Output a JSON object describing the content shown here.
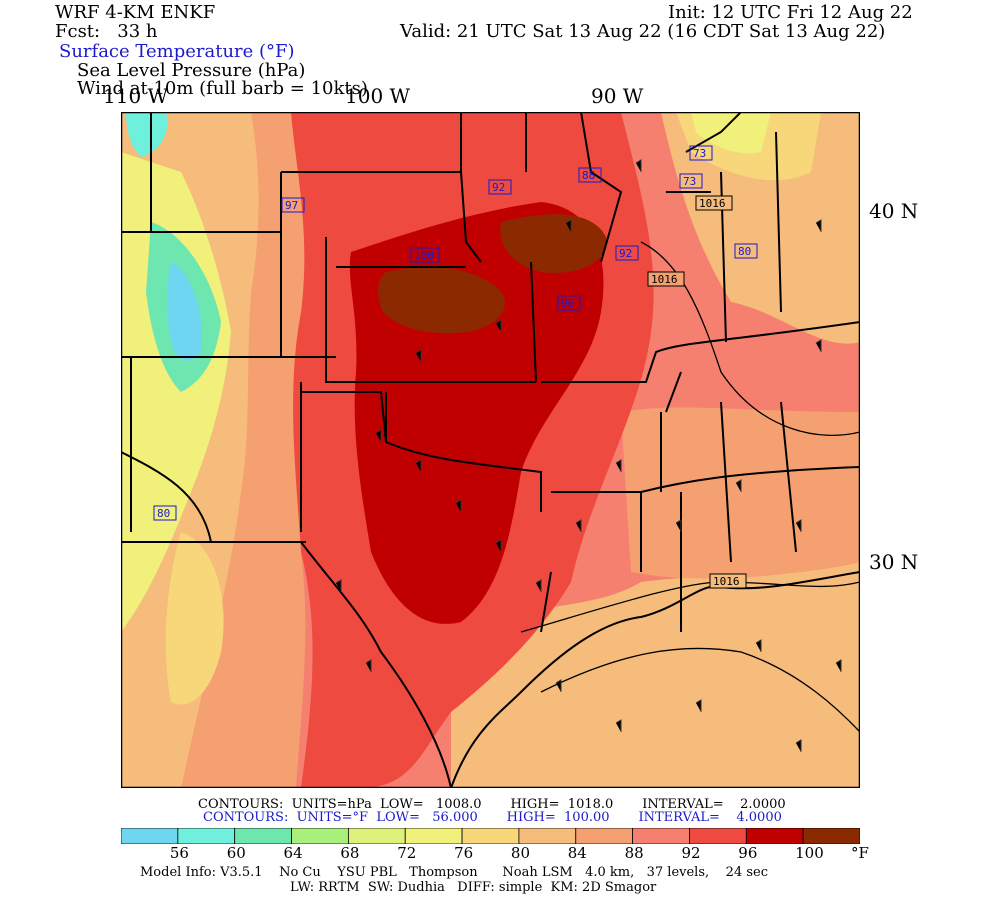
{
  "header": {
    "model": "WRF 4-KM ENKF",
    "init": "Init: 12 UTC Fri 12 Aug 22",
    "fcst": "Fcst:   33 h",
    "valid": "Valid: 21 UTC Sat 13 Aug 22 (16 CDT Sat 13 Aug 22)",
    "field1": "Surface Temperature (°F)",
    "field2": "Sea Level Pressure (hPa)",
    "field3": "Wind at 10m (full barb = 10kts)"
  },
  "axis_labels": {
    "lon": [
      "110 W",
      "100 W",
      "90 W"
    ],
    "lat": [
      "40 N",
      "30 N"
    ]
  },
  "contour_info": {
    "pressure": "CONTOURS:  UNITS=hPa  LOW=   1008.0       HIGH=  1018.0       INTERVAL=    2.0000",
    "temperature": "CONTOURS:  UNITS=°F  LOW=   56.000       HIGH=  100.00       INTERVAL=    4.0000"
  },
  "colorbar": {
    "colors": [
      "#6ed6f0",
      "#6ef0dc",
      "#6ee6b0",
      "#a8f07a",
      "#dcf07a",
      "#f0f07a",
      "#f8d67a",
      "#f6bc7c",
      "#f5a070",
      "#f58070",
      "#ef4a40",
      "#c00000",
      "#8b2a00"
    ],
    "labels": [
      "56",
      "60",
      "64",
      "68",
      "72",
      "76",
      "80",
      "84",
      "88",
      "92",
      "96",
      "100"
    ],
    "unit": "°F"
  },
  "map_labels": {
    "temps": [
      "92",
      "88",
      "73",
      "73",
      "97",
      "100",
      "92",
      "80",
      "96",
      "80"
    ],
    "pressures": [
      "1016",
      "1016",
      "1016"
    ]
  },
  "footer": {
    "line1": "Model Info: V3.5.1    No Cu    YSU PBL   Thompson      Noah LSM   4.0 km,   37 levels,    24 sec",
    "line2": "LW: RRTM  SW: Dudhia   DIFF: simple  KM: 2D Smagor"
  }
}
